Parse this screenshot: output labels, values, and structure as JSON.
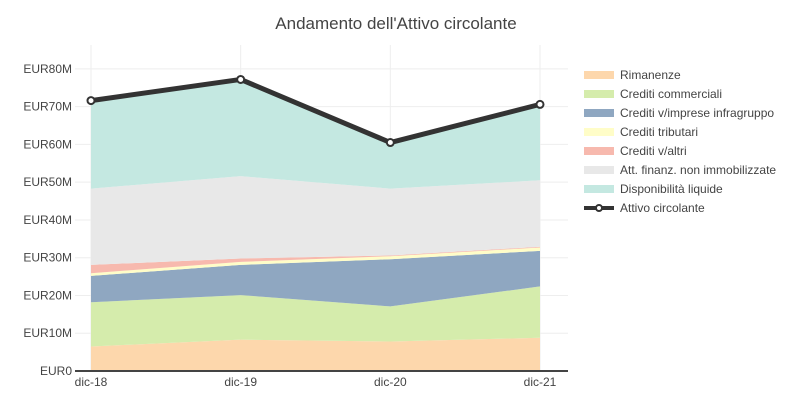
{
  "chart_data": {
    "type": "area",
    "title": "Andamento dell'Attivo circolante",
    "xlabel": "",
    "ylabel": "",
    "categories": [
      "dic-18",
      "dic-19",
      "dic-20",
      "dic-21"
    ],
    "ylim": [
      0,
      85
    ],
    "y_ticks": [
      0,
      10,
      20,
      30,
      40,
      50,
      60,
      70,
      80
    ],
    "y_tick_labels": [
      "EUR0",
      "EUR10M",
      "EUR20M",
      "EUR30M",
      "EUR40M",
      "EUR50M",
      "EUR60M",
      "EUR70M",
      "EUR80M"
    ],
    "stacked": true,
    "grid": true,
    "legend_position": "right",
    "series": [
      {
        "name": "Rimanenze",
        "values": [
          6.5,
          8.3,
          7.8,
          8.8
        ],
        "color": "#fdd7ac"
      },
      {
        "name": "Crediti commerciali",
        "values": [
          11.7,
          11.8,
          9.3,
          13.6
        ],
        "color": "#d5ecac"
      },
      {
        "name": "Crediti v/imprese infragruppo",
        "values": [
          7.0,
          8.0,
          12.5,
          9.4
        ],
        "color": "#8fa7c1"
      },
      {
        "name": "Crediti tributari",
        "values": [
          0.7,
          0.8,
          0.8,
          0.9
        ],
        "color": "#fffdc8"
      },
      {
        "name": "Crediti v/altri",
        "values": [
          2.2,
          0.9,
          0.2,
          0.2
        ],
        "color": "#f7b9ae"
      },
      {
        "name": "Att. finanz. non immobilizzate",
        "values": [
          20.2,
          21.8,
          17.7,
          17.6
        ],
        "color": "#e8e8e8"
      },
      {
        "name": "Disponibilità liquide",
        "values": [
          23.3,
          25.6,
          12.2,
          20.1
        ],
        "color": "#c4e8e1"
      }
    ],
    "line_series": {
      "name": "Attivo circolante",
      "values": [
        71.6,
        77.2,
        60.5,
        70.6
      ],
      "color": "#333333"
    }
  }
}
